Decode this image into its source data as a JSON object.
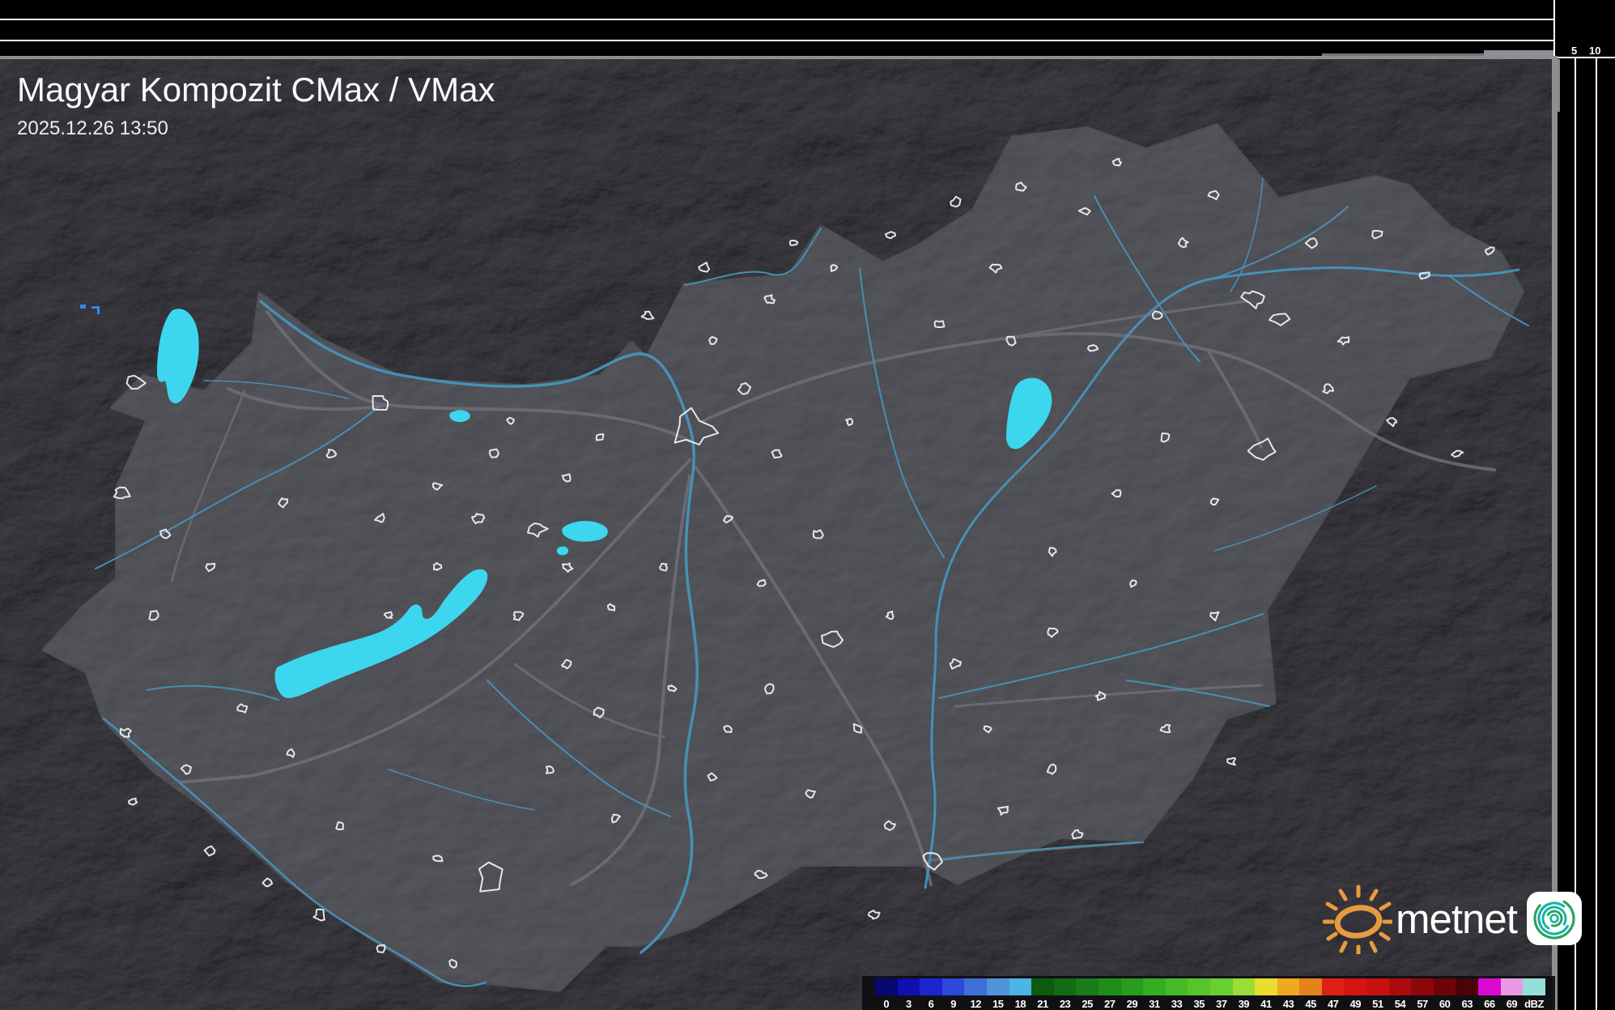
{
  "header": {
    "title": "Magyar Kompozit CMax / VMax",
    "datetime": "2025.12.26 13:50"
  },
  "top_chart": {
    "y_axis_labels": [
      "10",
      "5"
    ]
  },
  "right_chart": {
    "x_axis_labels": [
      "5",
      "10"
    ]
  },
  "scale": {
    "unit": "dBZ",
    "blocks": [
      {
        "label": "0",
        "color": "#08086e"
      },
      {
        "label": "3",
        "color": "#1010ae"
      },
      {
        "label": "6",
        "color": "#1d25cf"
      },
      {
        "label": "9",
        "color": "#2c49d8"
      },
      {
        "label": "12",
        "color": "#3f6fd8"
      },
      {
        "label": "15",
        "color": "#4f95dc"
      },
      {
        "label": "18",
        "color": "#4db4e6"
      },
      {
        "label": "21",
        "color": "#0d5a10"
      },
      {
        "label": "23",
        "color": "#136b14"
      },
      {
        "label": "25",
        "color": "#197c17"
      },
      {
        "label": "27",
        "color": "#208c1a"
      },
      {
        "label": "29",
        "color": "#289c1d"
      },
      {
        "label": "31",
        "color": "#35ac22"
      },
      {
        "label": "33",
        "color": "#44ba26"
      },
      {
        "label": "35",
        "color": "#55c52a"
      },
      {
        "label": "37",
        "color": "#68d02e"
      },
      {
        "label": "39",
        "color": "#9bdc36"
      },
      {
        "label": "41",
        "color": "#ecdc2e"
      },
      {
        "label": "43",
        "color": "#edaa20"
      },
      {
        "label": "45",
        "color": "#e4821b"
      },
      {
        "label": "47",
        "color": "#df2014"
      },
      {
        "label": "49",
        "color": "#d41511"
      },
      {
        "label": "51",
        "color": "#c91010"
      },
      {
        "label": "54",
        "color": "#ac0b0e"
      },
      {
        "label": "57",
        "color": "#8e070b"
      },
      {
        "label": "60",
        "color": "#6d0508"
      },
      {
        "label": "63",
        "color": "#4a0307"
      },
      {
        "label": "66",
        "color": "#d90ad0"
      },
      {
        "label": "69",
        "color": "#e99ae2"
      },
      {
        "label": "dBZ",
        "color": "#93dfda"
      }
    ]
  },
  "branding": {
    "logo_text": "metnet",
    "sun_color": "#e89a41",
    "app_icon_bg": "#ffffff",
    "swirl_teal": "#18b2a3",
    "swirl_green": "#2aa35f"
  },
  "map": {
    "colors": {
      "lake": "#3cd7ef",
      "river": "#4793ba",
      "road": "#70707a",
      "country_border": "#8f8f92",
      "town_outline": "#f4f4f4",
      "frame": "#8e8e90",
      "station_mark": "#3b82f6"
    }
  }
}
